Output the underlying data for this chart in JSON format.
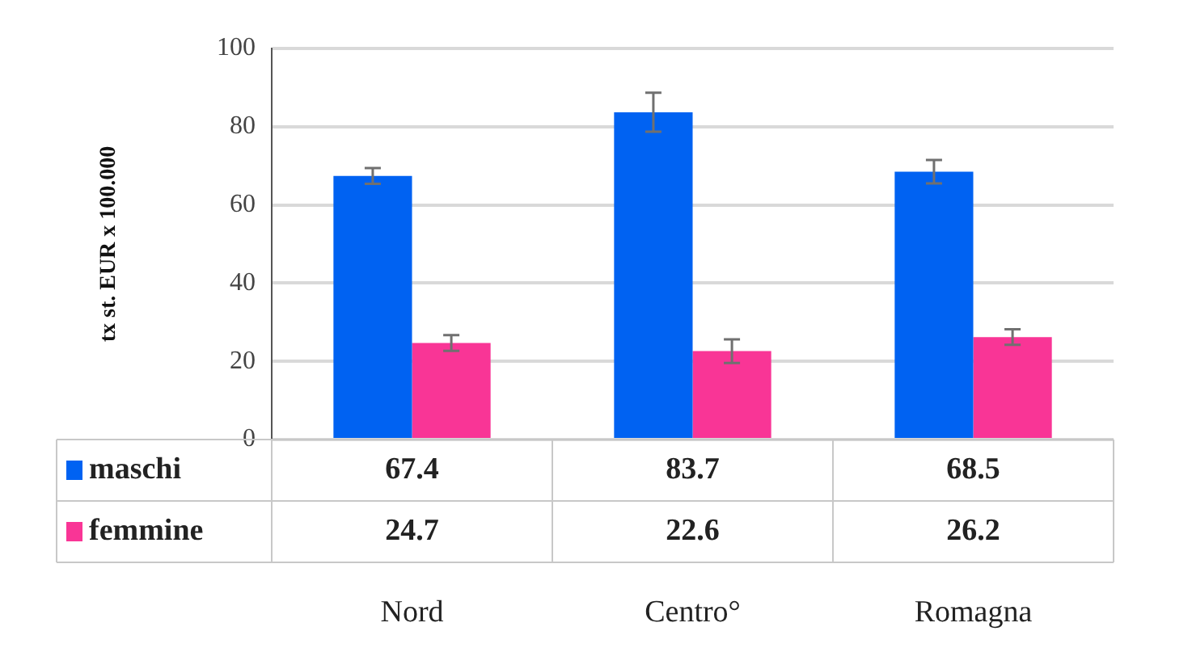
{
  "chart_data": {
    "type": "bar",
    "ylabel": "tx st. EUR x 100.000",
    "categories": [
      "Nord",
      "Centro°",
      "Romagna"
    ],
    "series": [
      {
        "name": "maschi",
        "color": "#0062f2",
        "values": [
          67.4,
          83.7,
          68.5
        ],
        "errors": [
          2,
          5,
          3
        ]
      },
      {
        "name": "femmine",
        "color": "#f93596",
        "values": [
          24.7,
          22.6,
          26.2
        ],
        "errors": [
          2,
          3,
          2
        ]
      }
    ],
    "ylim": [
      0,
      100
    ],
    "yticks": [
      0,
      20,
      40,
      60,
      80,
      100
    ],
    "grid": "y",
    "legend": "bottom left",
    "data_labels": true
  }
}
